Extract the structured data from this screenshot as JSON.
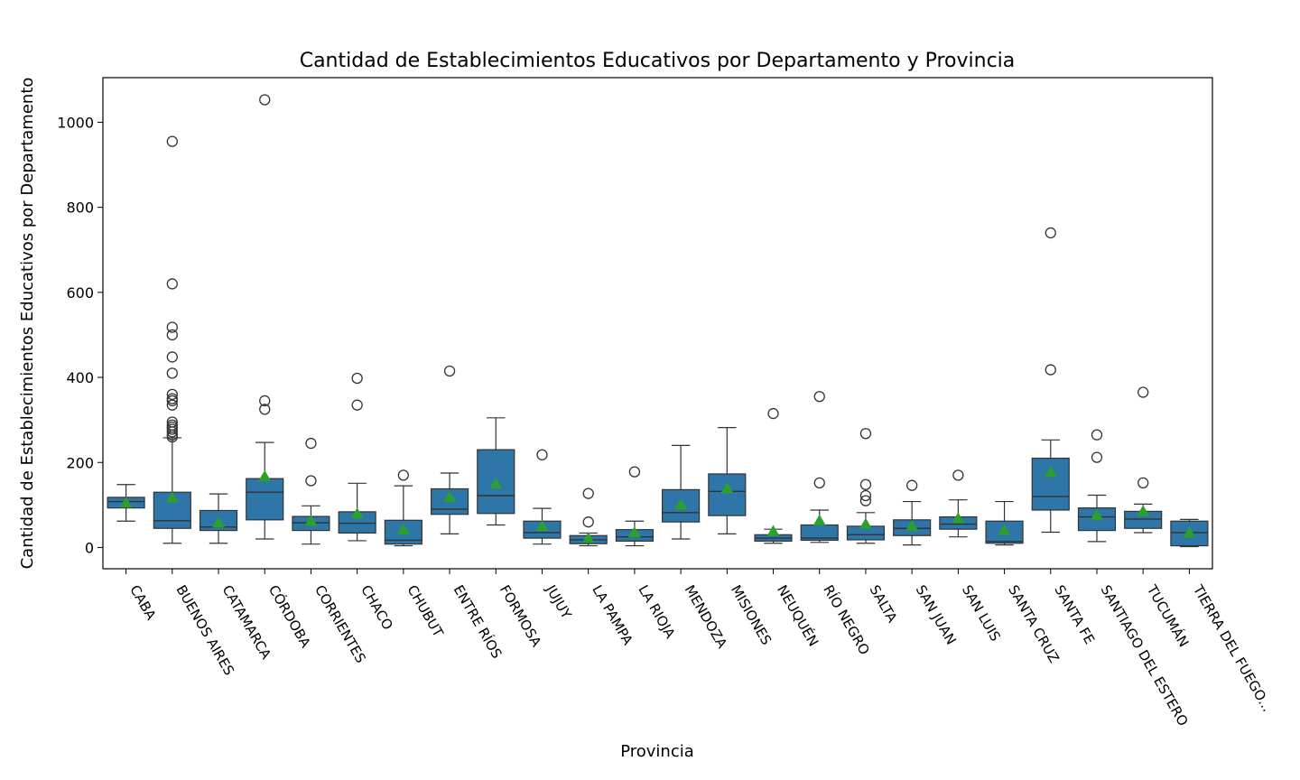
{
  "chart_data": {
    "type": "box",
    "title": "Cantidad de Establecimientos Educativos por Departamento y Provincia",
    "xlabel": "Provincia",
    "ylabel": "Cantidad de Establecimientos Educativos por Departamento",
    "ylim": [
      -50,
      1105
    ],
    "yticks": [
      0,
      200,
      400,
      600,
      800,
      1000
    ],
    "colors": {
      "box": "#2e75a8",
      "edge": "#333333",
      "mean": "#2ca02c",
      "outlier": "#333333"
    },
    "categories": [
      "CABA",
      "BUENOS AIRES",
      "CATAMARCA",
      "CÓRDOBA",
      "CORRIENTES",
      "CHACO",
      "CHUBUT",
      "ENTRE RÍOS",
      "FORMOSA",
      "JUJUY",
      "LA PAMPA",
      "LA RIOJA",
      "MENDOZA",
      "MISIONES",
      "NEUQUÉN",
      "RÍO NEGRO",
      "SALTA",
      "SAN JUAN",
      "SAN LUIS",
      "SANTA CRUZ",
      "SANTA FE",
      "SANTIAGO DEL ESTERO",
      "TUCUMÁN",
      "TIERRA DEL FUEGO..."
    ],
    "boxes": [
      {
        "wlo": 62,
        "q1": 93,
        "median": 108,
        "q3": 118,
        "whi": 148,
        "mean": 105,
        "outliers": []
      },
      {
        "wlo": 10,
        "q1": 45,
        "median": 63,
        "q3": 130,
        "whi": 258,
        "mean": 117,
        "outliers": [
          955,
          620,
          518,
          500,
          448,
          410,
          360,
          350,
          345,
          335,
          295,
          288,
          283,
          278,
          272,
          265,
          260
        ]
      },
      {
        "wlo": 10,
        "q1": 40,
        "median": 48,
        "q3": 87,
        "whi": 126,
        "mean": 58,
        "outliers": []
      },
      {
        "wlo": 20,
        "q1": 65,
        "median": 130,
        "q3": 162,
        "whi": 247,
        "mean": 167,
        "outliers": [
          1053,
          345,
          325
        ]
      },
      {
        "wlo": 8,
        "q1": 40,
        "median": 58,
        "q3": 73,
        "whi": 98,
        "mean": 62,
        "outliers": [
          245,
          157
        ]
      },
      {
        "wlo": 16,
        "q1": 34,
        "median": 57,
        "q3": 84,
        "whi": 151,
        "mean": 79,
        "outliers": [
          398,
          335
        ]
      },
      {
        "wlo": 4,
        "q1": 8,
        "median": 17,
        "q3": 64,
        "whi": 145,
        "mean": 42,
        "outliers": [
          170
        ]
      },
      {
        "wlo": 32,
        "q1": 78,
        "median": 90,
        "q3": 138,
        "whi": 175,
        "mean": 118,
        "outliers": [
          415
        ]
      },
      {
        "wlo": 53,
        "q1": 80,
        "median": 122,
        "q3": 230,
        "whi": 305,
        "mean": 150,
        "outliers": []
      },
      {
        "wlo": 8,
        "q1": 22,
        "median": 35,
        "q3": 62,
        "whi": 92,
        "mean": 50,
        "outliers": [
          218
        ]
      },
      {
        "wlo": 4,
        "q1": 9,
        "median": 18,
        "q3": 28,
        "whi": 34,
        "mean": 22,
        "outliers": [
          127,
          60
        ]
      },
      {
        "wlo": 4,
        "q1": 15,
        "median": 25,
        "q3": 42,
        "whi": 62,
        "mean": 35,
        "outliers": [
          178
        ]
      },
      {
        "wlo": 20,
        "q1": 60,
        "median": 82,
        "q3": 136,
        "whi": 240,
        "mean": 100,
        "outliers": []
      },
      {
        "wlo": 32,
        "q1": 75,
        "median": 132,
        "q3": 173,
        "whi": 282,
        "mean": 139,
        "outliers": []
      },
      {
        "wlo": 10,
        "q1": 15,
        "median": 22,
        "q3": 30,
        "whi": 43,
        "mean": 38,
        "outliers": [
          315
        ]
      },
      {
        "wlo": 12,
        "q1": 17,
        "median": 22,
        "q3": 53,
        "whi": 88,
        "mean": 63,
        "outliers": [
          355,
          152
        ]
      },
      {
        "wlo": 10,
        "q1": 18,
        "median": 30,
        "q3": 50,
        "whi": 82,
        "mean": 55,
        "outliers": [
          268,
          148,
          122,
          110
        ]
      },
      {
        "wlo": 6,
        "q1": 28,
        "median": 45,
        "q3": 65,
        "whi": 108,
        "mean": 50,
        "outliers": [
          146
        ]
      },
      {
        "wlo": 25,
        "q1": 43,
        "median": 55,
        "q3": 72,
        "whi": 112,
        "mean": 68,
        "outliers": [
          170
        ]
      },
      {
        "wlo": 6,
        "q1": 10,
        "median": 14,
        "q3": 62,
        "whi": 108,
        "mean": 40,
        "outliers": []
      },
      {
        "wlo": 36,
        "q1": 88,
        "median": 120,
        "q3": 210,
        "whi": 253,
        "mean": 177,
        "outliers": [
          740,
          418
        ]
      },
      {
        "wlo": 14,
        "q1": 40,
        "median": 72,
        "q3": 93,
        "whi": 123,
        "mean": 76,
        "outliers": [
          265,
          212
        ]
      },
      {
        "wlo": 35,
        "q1": 45,
        "median": 67,
        "q3": 85,
        "whi": 102,
        "mean": 85,
        "outliers": [
          365,
          152
        ]
      },
      {
        "wlo": 2,
        "q1": 4,
        "median": 35,
        "q3": 62,
        "whi": 66,
        "mean": 35,
        "outliers": []
      }
    ]
  }
}
